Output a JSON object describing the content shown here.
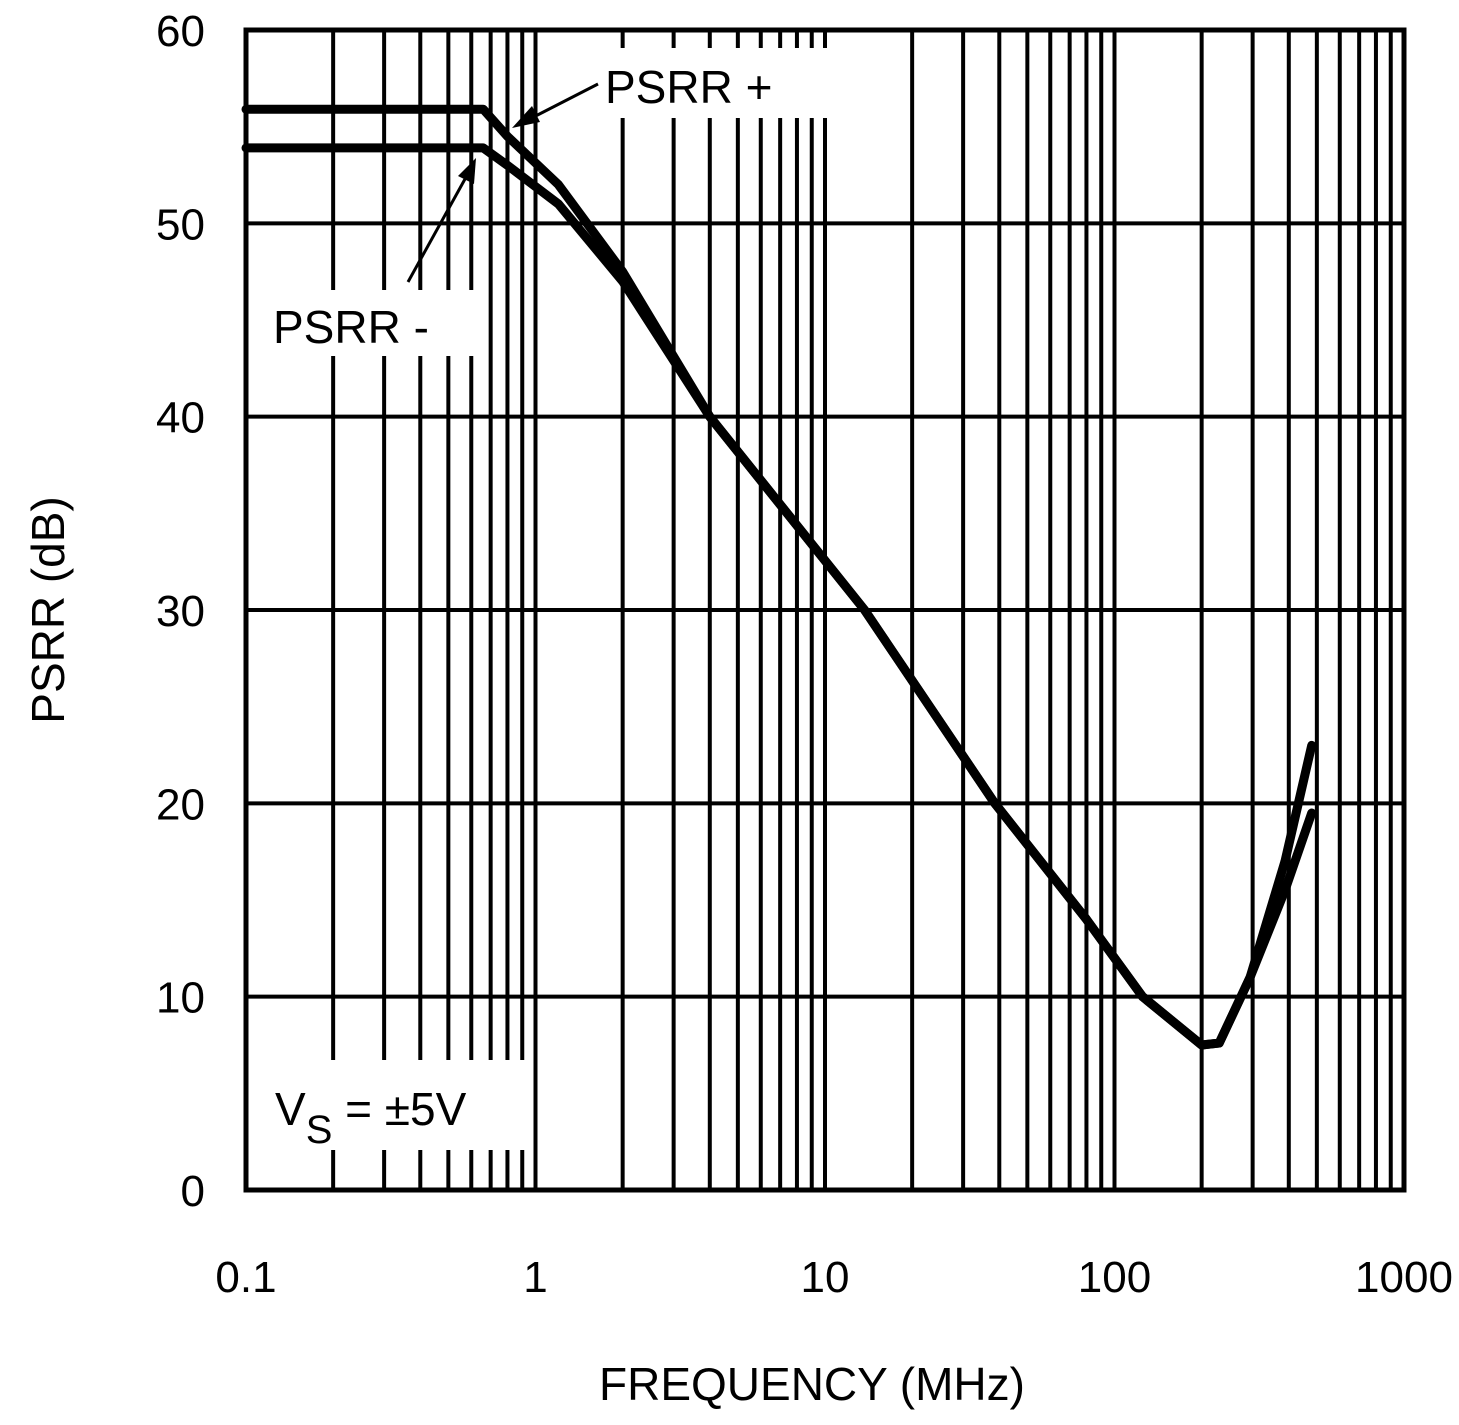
{
  "chart_data": {
    "type": "line",
    "title": "",
    "xlabel": "FREQUENCY (MHz)",
    "ylabel": "PSRR (dB)",
    "xscale": "log",
    "xlim": [
      0.1,
      1000
    ],
    "ylim": [
      0,
      60
    ],
    "grid": true,
    "x_tick_labels": [
      "0.1",
      "1",
      "10",
      "100",
      "1000"
    ],
    "y_tick_labels": [
      "0",
      "10",
      "20",
      "30",
      "40",
      "50",
      "60"
    ],
    "colors": {
      "line": "#000000",
      "grid": "#000000",
      "background": "#ffffff"
    },
    "series": [
      {
        "name": "PSRR +",
        "x": [
          0.1,
          0.66,
          0.8,
          1.2,
          2,
          4,
          13.7,
          38.6,
          80,
          125,
          200,
          230,
          294,
          388,
          480
        ],
        "y": [
          55.9,
          55.9,
          54.5,
          52,
          47.5,
          40,
          30,
          20,
          14,
          10,
          7.5,
          7.6,
          11,
          17,
          23
        ]
      },
      {
        "name": "PSRR -",
        "x": [
          0.1,
          0.66,
          0.8,
          1.2,
          2,
          4,
          13.7,
          38.6,
          80,
          125,
          200,
          230,
          294,
          388,
          480
        ],
        "y": [
          53.9,
          53.9,
          53,
          51,
          47,
          40,
          30,
          20,
          14,
          10,
          7.5,
          7.6,
          11,
          15.5,
          19.5
        ]
      }
    ],
    "annotations": [
      {
        "text": "PSRR +",
        "points_to": "PSRR +"
      },
      {
        "text": "PSRR -",
        "points_to": "PSRR -"
      },
      {
        "text_main": "V",
        "text_sub": "S",
        "text_rest": " = ±5V"
      }
    ]
  }
}
